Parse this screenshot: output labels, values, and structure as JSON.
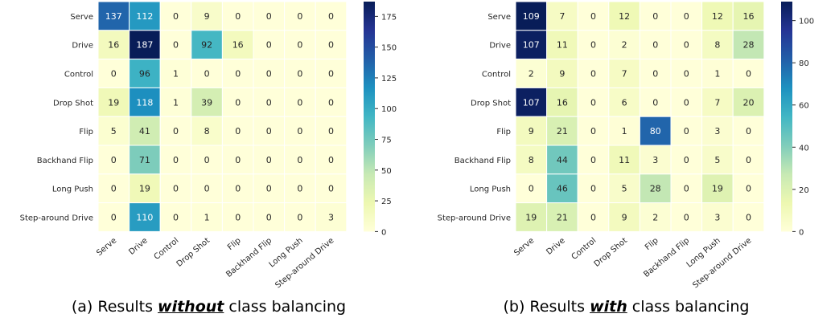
{
  "colors": {
    "scale": [
      "#ffffd9",
      "#edf8b1",
      "#c7e9b4",
      "#7fcdbb",
      "#41b6c4",
      "#1d91c0",
      "#225ea8",
      "#253494",
      "#081d58"
    ],
    "text_dark": "#262626",
    "text_light": "#ffffff"
  },
  "captions": [
    {
      "pre": "(a) Results ",
      "emph": "without",
      "post": " class balancing"
    },
    {
      "pre": "(b) Results ",
      "emph": "with",
      "post": " class balancing"
    }
  ],
  "chart_data": [
    {
      "type": "heatmap",
      "title": "",
      "rows": [
        "Serve",
        "Drive",
        "Control",
        "Drop Shot",
        "Flip",
        "Backhand Flip",
        "Long Push",
        "Step-around Drive"
      ],
      "columns": [
        "Serve",
        "Drive",
        "Control",
        "Drop Shot",
        "Flip",
        "Backhand Flip",
        "Long Push",
        "Step-around Drive"
      ],
      "values": [
        [
          137,
          112,
          0,
          9,
          0,
          0,
          0,
          0
        ],
        [
          16,
          187,
          0,
          92,
          16,
          0,
          0,
          0
        ],
        [
          0,
          96,
          1,
          0,
          0,
          0,
          0,
          0
        ],
        [
          19,
          118,
          1,
          39,
          0,
          0,
          0,
          0
        ],
        [
          5,
          41,
          0,
          8,
          0,
          0,
          0,
          0
        ],
        [
          0,
          71,
          0,
          0,
          0,
          0,
          0,
          0
        ],
        [
          0,
          19,
          0,
          0,
          0,
          0,
          0,
          0
        ],
        [
          0,
          110,
          0,
          1,
          0,
          0,
          0,
          3
        ]
      ],
      "colorbar": {
        "min": 0,
        "max": 187,
        "ticks": [
          0,
          25,
          50,
          75,
          100,
          125,
          150,
          175
        ]
      },
      "colormap": "YlGnBu"
    },
    {
      "type": "heatmap",
      "title": "",
      "rows": [
        "Serve",
        "Drive",
        "Control",
        "Drop Shot",
        "Flip",
        "Backhand Flip",
        "Long Push",
        "Step-around Drive"
      ],
      "columns": [
        "Serve",
        "Drive",
        "Control",
        "Drop Shot",
        "Flip",
        "Backhand Flip",
        "Long Push",
        "Step-around Drive"
      ],
      "values": [
        [
          109,
          7,
          0,
          12,
          0,
          0,
          12,
          16
        ],
        [
          107,
          11,
          0,
          2,
          0,
          0,
          8,
          28
        ],
        [
          2,
          9,
          0,
          7,
          0,
          0,
          1,
          0
        ],
        [
          107,
          16,
          0,
          6,
          0,
          0,
          7,
          20
        ],
        [
          9,
          21,
          0,
          1,
          80,
          0,
          3,
          0
        ],
        [
          8,
          44,
          0,
          11,
          3,
          0,
          5,
          0
        ],
        [
          0,
          46,
          0,
          5,
          28,
          0,
          19,
          0
        ],
        [
          19,
          21,
          0,
          9,
          2,
          0,
          3,
          0
        ]
      ],
      "colorbar": {
        "min": 0,
        "max": 109,
        "ticks": [
          0,
          20,
          40,
          60,
          80,
          100
        ]
      },
      "colormap": "YlGnBu"
    }
  ]
}
